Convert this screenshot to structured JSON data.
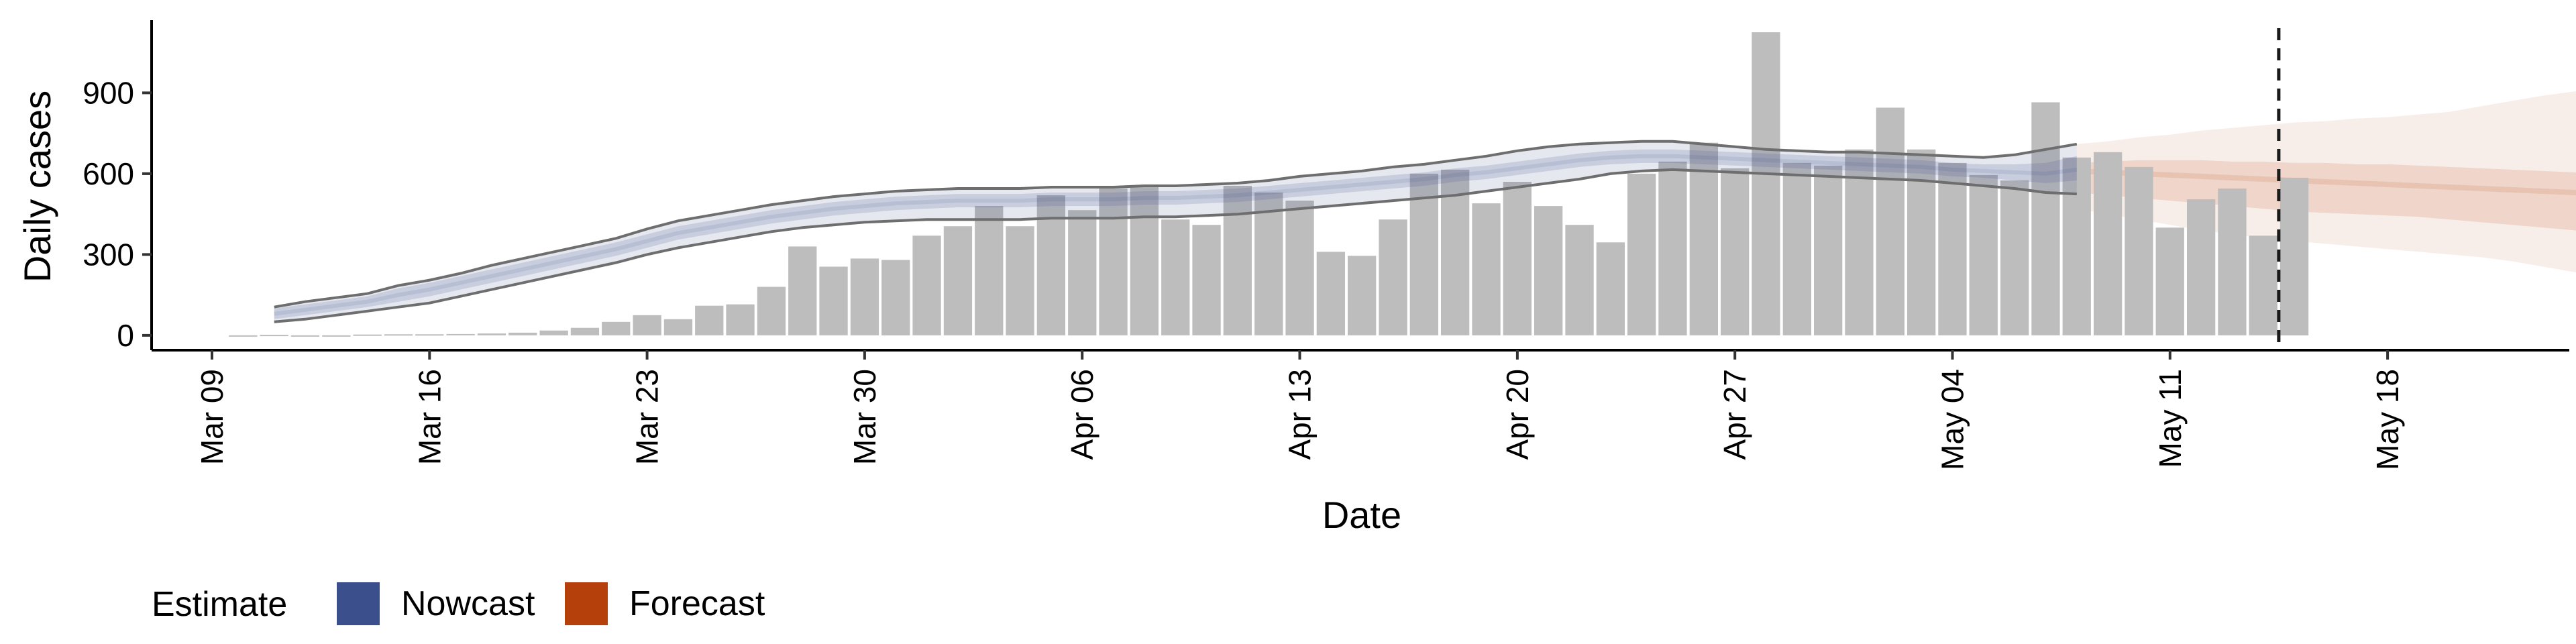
{
  "chart_data": {
    "type": "bar",
    "xlabel": "Date",
    "ylabel": "Daily cases",
    "ylim": [
      -55,
      1170
    ],
    "yticks": [
      0,
      300,
      600,
      900
    ],
    "xtick_labels": [
      "Mar 09",
      "Mar 16",
      "Mar 23",
      "Mar 30",
      "Apr 06",
      "Apr 13",
      "Apr 20",
      "Apr 27",
      "May 04",
      "May 11",
      "May 18"
    ],
    "grid": false,
    "legend": {
      "position": "bottom-left",
      "title": "Estimate",
      "entries": [
        {
          "label": "Nowcast",
          "color": "#3a4f8c"
        },
        {
          "label": "Forecast",
          "color": "#b5400c"
        }
      ]
    },
    "colors": {
      "bar": "#bdbdbd",
      "nowcast": "#3a4f8c",
      "forecast": "#b5400c",
      "line": "#6e6e6e",
      "cutoff_line": "#1a1a1a"
    },
    "observed_cases": {
      "start": "Mar 10",
      "values": [
        0,
        2,
        0,
        0,
        3,
        4,
        4,
        5,
        7,
        10,
        18,
        28,
        50,
        75,
        60,
        110,
        115,
        180,
        330,
        255,
        285,
        280,
        370,
        405,
        480,
        405,
        520,
        465,
        545,
        550,
        430,
        410,
        555,
        530,
        500,
        310,
        295,
        430,
        600,
        615,
        490,
        570,
        480,
        410,
        345,
        600,
        645,
        715,
        620,
        1125,
        640,
        630,
        690,
        845,
        690,
        640,
        595,
        575,
        865,
        660,
        680,
        625,
        400,
        505,
        545,
        370,
        585
      ]
    },
    "nowcast": {
      "start": "Mar 11",
      "median": [
        80,
        95,
        110,
        125,
        150,
        170,
        195,
        220,
        245,
        270,
        295,
        320,
        350,
        380,
        400,
        420,
        440,
        455,
        470,
        480,
        490,
        495,
        500,
        500,
        500,
        505,
        505,
        505,
        510,
        510,
        515,
        520,
        530,
        540,
        550,
        560,
        570,
        580,
        595,
        605,
        620,
        635,
        650,
        660,
        665,
        665,
        660,
        655,
        650,
        645,
        640,
        635,
        630,
        625,
        615,
        610,
        605,
        600,
        615
      ],
      "lower_50": [
        60,
        75,
        90,
        105,
        125,
        145,
        170,
        195,
        220,
        245,
        270,
        295,
        325,
        355,
        375,
        395,
        415,
        430,
        445,
        455,
        465,
        470,
        475,
        475,
        475,
        480,
        480,
        480,
        485,
        485,
        490,
        495,
        505,
        515,
        525,
        535,
        545,
        555,
        570,
        580,
        595,
        610,
        625,
        635,
        640,
        640,
        635,
        630,
        625,
        620,
        615,
        610,
        605,
        600,
        590,
        585,
        575,
        565,
        575
      ],
      "upper_50": [
        100,
        115,
        130,
        145,
        175,
        195,
        220,
        245,
        270,
        295,
        320,
        345,
        375,
        405,
        425,
        445,
        465,
        480,
        495,
        505,
        515,
        520,
        525,
        525,
        525,
        530,
        530,
        530,
        535,
        535,
        540,
        545,
        555,
        565,
        575,
        585,
        595,
        605,
        620,
        630,
        645,
        660,
        675,
        685,
        690,
        690,
        685,
        680,
        675,
        670,
        665,
        660,
        655,
        650,
        640,
        635,
        635,
        640,
        665
      ],
      "lower_90": [
        50,
        60,
        75,
        90,
        105,
        120,
        145,
        170,
        195,
        220,
        245,
        270,
        300,
        325,
        345,
        365,
        385,
        400,
        410,
        420,
        425,
        430,
        430,
        430,
        430,
        435,
        435,
        435,
        440,
        440,
        445,
        450,
        460,
        470,
        480,
        490,
        500,
        510,
        520,
        535,
        550,
        565,
        580,
        600,
        610,
        615,
        610,
        605,
        600,
        595,
        590,
        585,
        580,
        575,
        565,
        555,
        545,
        530,
        525
      ],
      "upper_90": [
        105,
        125,
        140,
        155,
        185,
        205,
        230,
        260,
        285,
        310,
        335,
        360,
        395,
        425,
        445,
        465,
        485,
        500,
        515,
        525,
        535,
        540,
        545,
        545,
        545,
        550,
        550,
        550,
        555,
        555,
        560,
        565,
        575,
        590,
        600,
        610,
        625,
        635,
        650,
        665,
        685,
        700,
        710,
        715,
        720,
        720,
        710,
        700,
        690,
        685,
        680,
        680,
        675,
        670,
        665,
        660,
        670,
        690,
        710
      ]
    },
    "forecast": {
      "start": "May 08",
      "median": [
        610,
        605,
        600,
        595,
        590,
        585,
        580,
        575,
        570,
        565,
        560,
        555,
        550,
        545,
        540,
        535,
        530,
        525,
        520,
        510
      ],
      "lower_50": [
        530,
        520,
        510,
        500,
        490,
        480,
        470,
        460,
        455,
        450,
        445,
        440,
        430,
        420,
        410,
        400,
        390,
        370,
        340,
        310
      ],
      "upper_50": [
        640,
        645,
        650,
        650,
        650,
        645,
        645,
        640,
        640,
        635,
        635,
        630,
        625,
        620,
        615,
        610,
        605,
        595,
        585,
        570
      ],
      "lower_90": [
        470,
        450,
        430,
        410,
        390,
        375,
        360,
        350,
        340,
        330,
        320,
        310,
        300,
        290,
        275,
        255,
        235,
        215,
        195,
        180
      ],
      "upper_90": [
        710,
        720,
        735,
        745,
        760,
        770,
        780,
        790,
        795,
        805,
        810,
        820,
        830,
        850,
        870,
        890,
        905,
        915,
        925,
        930
      ]
    },
    "cutoff_date": "May 15"
  }
}
